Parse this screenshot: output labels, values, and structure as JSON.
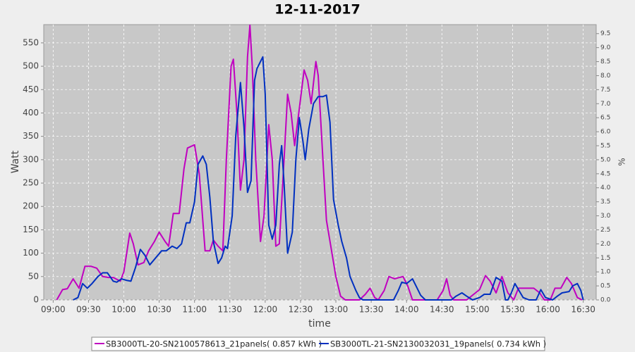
{
  "chart_data": {
    "type": "line",
    "title": "12-11-2017",
    "xlabel": "time",
    "ylabel": "Watt",
    "y2label": "%",
    "xlim": [
      "08:52",
      "16:41"
    ],
    "xticks": [
      "09:00",
      "09:30",
      "10:00",
      "10:30",
      "11:00",
      "11:30",
      "12:00",
      "12:30",
      "13:00",
      "13:30",
      "14:00",
      "14:30",
      "15:00",
      "15:30",
      "16:00",
      "16:30"
    ],
    "ylim": [
      0,
      589
    ],
    "yticks": [
      0,
      50,
      100,
      150,
      200,
      250,
      300,
      350,
      400,
      450,
      500,
      550
    ],
    "y2lim": [
      0,
      9.82
    ],
    "y2ticks": [
      {
        "value": 0,
        "label": "0.0"
      },
      0.5,
      {
        "value": 1,
        "label": "1.0"
      },
      1.5,
      {
        "value": 2,
        "label": "2.0"
      },
      2.5,
      {
        "value": 3,
        "label": "3.0"
      },
      3.5,
      {
        "value": 4,
        "label": "4.0"
      },
      4.5,
      {
        "value": 5,
        "label": "5.0"
      },
      5.5,
      {
        "value": 6,
        "label": "6.0"
      },
      6.5,
      {
        "value": 7,
        "label": "7.0"
      },
      7.5,
      {
        "value": 8,
        "label": "8.0"
      },
      8.5,
      {
        "value": 9,
        "label": "9.0"
      },
      9.5
    ],
    "grid": true,
    "series": [
      {
        "name": "SB3000TL-20-SN2100578613_21panels( 0.857 kWh  )",
        "color": "#c000c0",
        "x": [
          "09:03",
          "09:08",
          "09:12",
          "09:17",
          "09:22",
          "09:27",
          "09:32",
          "09:37",
          "09:42",
          "09:47",
          "09:51",
          "09:57",
          "10:00",
          "10:05",
          "10:08",
          "10:12",
          "10:17",
          "10:21",
          "10:26",
          "10:30",
          "10:35",
          "10:38",
          "10:42",
          "10:47",
          "10:51",
          "10:54",
          "11:00",
          "11:04",
          "11:09",
          "11:13",
          "11:16",
          "11:20",
          "11:24",
          "11:27",
          "11:31",
          "11:33",
          "11:36",
          "11:39",
          "11:42",
          "11:45",
          "11:47",
          "11:49",
          "11:52",
          "11:56",
          "11:59",
          "12:03",
          "12:06",
          "12:09",
          "12:12",
          "12:16",
          "12:19",
          "12:22",
          "12:25",
          "12:29",
          "12:33",
          "12:36",
          "12:39",
          "12:43",
          "12:45",
          "12:49",
          "12:52",
          "12:56",
          "13:00",
          "13:04",
          "13:08",
          "13:20",
          "13:25",
          "13:29",
          "13:33",
          "13:36",
          "13:41",
          "13:45",
          "13:50",
          "13:54",
          "13:57",
          "14:01",
          "14:05",
          "14:26",
          "14:31",
          "14:34",
          "14:37",
          "14:40",
          "14:51",
          "14:56",
          "15:02",
          "15:07",
          "15:11",
          "15:16",
          "15:21",
          "15:26",
          "15:31",
          "15:35",
          "15:41",
          "15:48",
          "15:53",
          "15:57",
          "16:02",
          "16:06",
          "16:11",
          "16:16",
          "16:20",
          "16:25",
          "16:29"
        ],
        "values": [
          0,
          22,
          24,
          45,
          25,
          72,
          72,
          68,
          50,
          48,
          48,
          40,
          60,
          143,
          120,
          75,
          80,
          105,
          125,
          145,
          125,
          115,
          185,
          185,
          280,
          325,
          332,
          270,
          105,
          105,
          128,
          115,
          105,
          300,
          500,
          515,
          400,
          235,
          300,
          520,
          588,
          500,
          300,
          125,
          180,
          375,
          300,
          115,
          120,
          300,
          440,
          400,
          330,
          410,
          492,
          470,
          420,
          510,
          480,
          300,
          170,
          110,
          50,
          8,
          0,
          0,
          12,
          25,
          5,
          0,
          20,
          50,
          45,
          48,
          50,
          30,
          0,
          0,
          20,
          45,
          10,
          0,
          0,
          10,
          22,
          52,
          40,
          15,
          50,
          15,
          0,
          25,
          25,
          25,
          15,
          0,
          0,
          25,
          25,
          48,
          35,
          5,
          0
        ]
      },
      {
        "name": "SB3000TL-21-SN2130032031_19panels( 0.734 kWh  )",
        "color": "#0030c0",
        "x": [
          "09:17",
          "09:21",
          "09:25",
          "09:29",
          "09:33",
          "09:38",
          "09:42",
          "09:46",
          "09:51",
          "09:54",
          "09:58",
          "10:02",
          "10:06",
          "10:10",
          "10:14",
          "10:18",
          "10:22",
          "10:27",
          "10:32",
          "10:36",
          "10:41",
          "10:45",
          "10:49",
          "10:53",
          "10:56",
          "11:00",
          "11:03",
          "11:07",
          "11:10",
          "11:13",
          "11:16",
          "11:20",
          "11:23",
          "11:26",
          "11:28",
          "11:32",
          "11:35",
          "11:39",
          "11:42",
          "11:45",
          "11:48",
          "11:51",
          "11:53",
          "11:58",
          "12:00",
          "12:03",
          "12:06",
          "12:09",
          "12:12",
          "12:14",
          "12:16",
          "12:19",
          "12:23",
          "12:26",
          "12:29",
          "12:32",
          "12:34",
          "12:37",
          "12:41",
          "12:45",
          "12:49",
          "12:52",
          "12:55",
          "12:58",
          "13:02",
          "13:05",
          "13:09",
          "13:12",
          "13:17",
          "13:20",
          "13:23",
          "13:49",
          "13:53",
          "13:56",
          "14:00",
          "14:05",
          "14:08",
          "14:12",
          "14:16",
          "14:38",
          "14:42",
          "14:47",
          "14:51",
          "14:56",
          "15:02",
          "15:06",
          "15:11",
          "15:16",
          "15:21",
          "15:24",
          "15:26",
          "15:29",
          "15:32",
          "15:35",
          "15:39",
          "15:44",
          "15:50",
          "15:54",
          "15:58",
          "16:04",
          "16:08",
          "16:12",
          "16:18",
          "16:21",
          "16:25",
          "16:28",
          "16:30"
        ],
        "values": [
          0,
          5,
          35,
          25,
          35,
          50,
          58,
          58,
          40,
          38,
          45,
          42,
          40,
          70,
          108,
          95,
          75,
          90,
          105,
          105,
          115,
          110,
          120,
          165,
          165,
          210,
          290,
          308,
          290,
          220,
          125,
          78,
          90,
          115,
          110,
          180,
          350,
          465,
          370,
          230,
          255,
          470,
          495,
          520,
          440,
          160,
          130,
          160,
          290,
          330,
          250,
          100,
          145,
          300,
          390,
          340,
          300,
          365,
          420,
          435,
          435,
          438,
          380,
          215,
          160,
          125,
          90,
          50,
          20,
          5,
          0,
          0,
          20,
          38,
          35,
          45,
          30,
          10,
          0,
          0,
          8,
          15,
          8,
          0,
          5,
          12,
          12,
          48,
          40,
          0,
          0,
          15,
          35,
          22,
          5,
          0,
          0,
          22,
          5,
          0,
          8,
          15,
          18,
          30,
          35,
          20,
          0
        ]
      }
    ]
  }
}
